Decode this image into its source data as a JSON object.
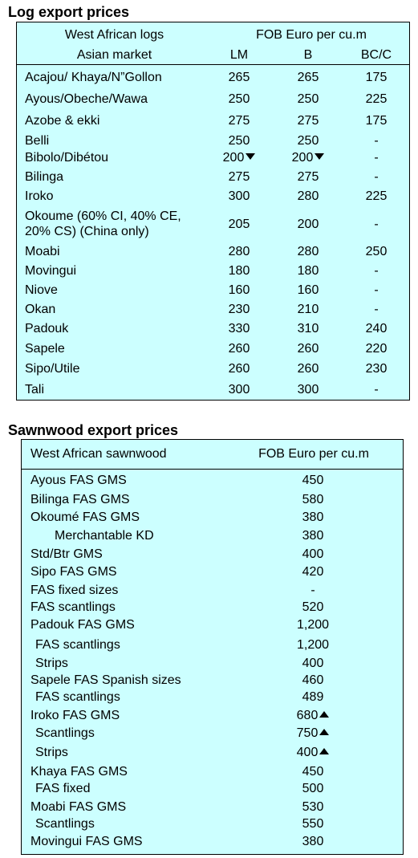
{
  "logs": {
    "title": "Log export prices",
    "header": {
      "left_line1": "West African logs",
      "left_line2": "Asian market",
      "price_heading": "FOB Euro per cu.m",
      "col_lm": "LM",
      "col_b": "B",
      "col_bcc": "BC/C"
    },
    "rows": [
      {
        "name": "Acajou/ Khaya/N”Gollon",
        "lm": "265",
        "b": "265",
        "bcc": "175"
      },
      {
        "name": "Ayous/Obeche/Wawa",
        "lm": "250",
        "b": "250",
        "bcc": "225"
      },
      {
        "name": "Azobe & ekki",
        "lm": "275",
        "b": "275",
        "bcc": "175"
      },
      {
        "name": "Belli",
        "lm": "250",
        "b": "250",
        "bcc": "-"
      },
      {
        "name": "Bibolo/Dibétou",
        "lm": "200",
        "lm_trend": "down",
        "b": "200",
        "b_trend": "down",
        "bcc": "-"
      },
      {
        "name": "Bilinga",
        "lm": "275",
        "b": "275",
        "bcc": "-"
      },
      {
        "name": "Iroko",
        "lm": "300",
        "b": "280",
        "bcc": "225"
      },
      {
        "name": "Okoume (60% CI, 40% CE,",
        "name2": "20% CS) (China only)",
        "lm": "205",
        "b": "200",
        "bcc": "-"
      },
      {
        "name": "Moabi",
        "lm": "280",
        "b": "280",
        "bcc": "250"
      },
      {
        "name": "Movingui",
        "lm": "180",
        "b": "180",
        "bcc": "-"
      },
      {
        "name": "Niove",
        "lm": "160",
        "b": "160",
        "bcc": "-"
      },
      {
        "name": "Okan",
        "lm": "230",
        "b": "210",
        "bcc": "-"
      },
      {
        "name": "Padouk",
        "lm": "330",
        "b": "310",
        "bcc": "240"
      },
      {
        "name": "Sapele",
        "lm": "260",
        "b": "260",
        "bcc": "220"
      },
      {
        "name": "Sipo/Utile",
        "lm": "260",
        "b": "260",
        "bcc": "230"
      },
      {
        "name": "Tali",
        "lm": "300",
        "b": "300",
        "bcc": "-"
      }
    ]
  },
  "sawnwood": {
    "title": "Sawnwood export prices",
    "header": {
      "left": "West African sawnwood",
      "price_heading": "FOB Euro per cu.m"
    },
    "rows": [
      {
        "name": "Ayous FAS GMS",
        "price": "450"
      },
      {
        "name": "Bilinga FAS GMS",
        "price": "580"
      },
      {
        "name": "Okoumé FAS GMS",
        "price": "380"
      },
      {
        "name": "Merchantable KD",
        "price": "380",
        "indent": 2
      },
      {
        "name": "Std/Btr GMS",
        "price": "400"
      },
      {
        "name": "Sipo FAS GMS",
        "price": "420"
      },
      {
        "name": "FAS fixed sizes",
        "price": "-"
      },
      {
        "name": "FAS scantlings",
        "price": "520"
      },
      {
        "name": "Padouk FAS GMS",
        "price": "1,200"
      },
      {
        "name": "FAS scantlings",
        "price": "1,200",
        "indent": 1
      },
      {
        "name": "Strips",
        "price": "400",
        "indent": 1
      },
      {
        "name": "Sapele FAS Spanish sizes",
        "price": "460"
      },
      {
        "name": "FAS scantlings",
        "price": "489",
        "indent": 1
      },
      {
        "name": "Iroko FAS GMS",
        "price": "680",
        "trend": "up"
      },
      {
        "name": "Scantlings",
        "price": "750",
        "trend": "up",
        "indent": 1
      },
      {
        "name": "Strips",
        "price": "400",
        "trend": "up",
        "indent": 1
      },
      {
        "name": "Khaya FAS GMS",
        "price": "450"
      },
      {
        "name": "FAS fixed",
        "price": "500",
        "indent": 1
      },
      {
        "name": "Moabi FAS GMS",
        "price": "530"
      },
      {
        "name": "Scantlings",
        "price": "550",
        "indent": 1
      },
      {
        "name": "Movingui FAS GMS",
        "price": "380"
      }
    ]
  }
}
